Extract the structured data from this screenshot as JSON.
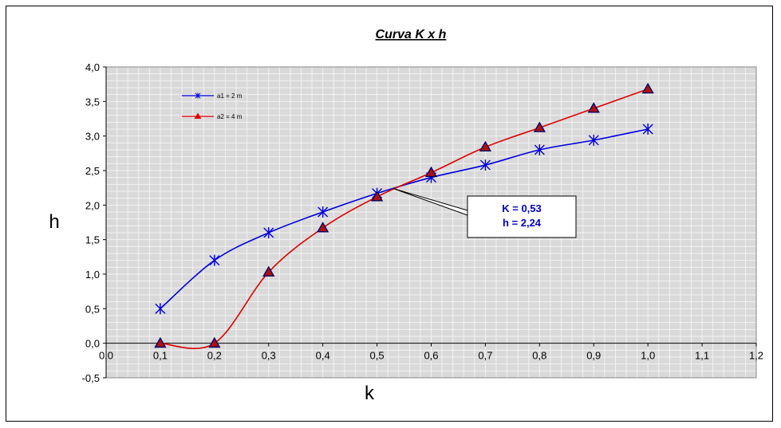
{
  "chart_data": {
    "type": "line",
    "title": "Curva K x  h",
    "xlabel": "k",
    "ylabel": "h",
    "xlim": [
      0.0,
      1.2
    ],
    "ylim": [
      -0.5,
      4.0
    ],
    "x_ticks": [
      "0,0",
      "0,1",
      "0,2",
      "0,3",
      "0,4",
      "0,5",
      "0,6",
      "0,7",
      "0,8",
      "0,9",
      "1,0",
      "1,1",
      "1,2"
    ],
    "y_ticks": [
      "-0,5",
      "0,0",
      "0,5",
      "1,0",
      "1,5",
      "2,0",
      "2,5",
      "3,0",
      "3,5",
      "4,0"
    ],
    "grid": true,
    "legend_position": "top-left",
    "series": [
      {
        "name": "a1 = 2 m",
        "color": "#0000dd",
        "marker": "asterisk",
        "x": [
          0.1,
          0.2,
          0.3,
          0.4,
          0.5,
          0.6,
          0.7,
          0.8,
          0.9,
          1.0
        ],
        "y": [
          0.5,
          1.2,
          1.6,
          1.9,
          2.17,
          2.4,
          2.58,
          2.8,
          2.94,
          3.1
        ]
      },
      {
        "name": "a2 = 4 m",
        "color": "#dd0000",
        "marker": "triangle",
        "marker_fill": "#aa1111",
        "marker_edge": "#000066",
        "x": [
          0.1,
          0.2,
          0.3,
          0.4,
          0.5,
          0.6,
          0.7,
          0.8,
          0.9,
          1.0
        ],
        "y": [
          0.0,
          0.0,
          1.03,
          1.67,
          2.12,
          2.47,
          2.84,
          3.12,
          3.4,
          3.68
        ]
      }
    ],
    "annotation": {
      "lines": [
        "K = 0,53",
        "h = 2,24"
      ],
      "point": {
        "x": 0.53,
        "y": 2.24
      }
    }
  },
  "colors": {
    "plot_background": "#d9d9d9",
    "grid_line": "#f2f2f2",
    "axis": "#000000"
  }
}
